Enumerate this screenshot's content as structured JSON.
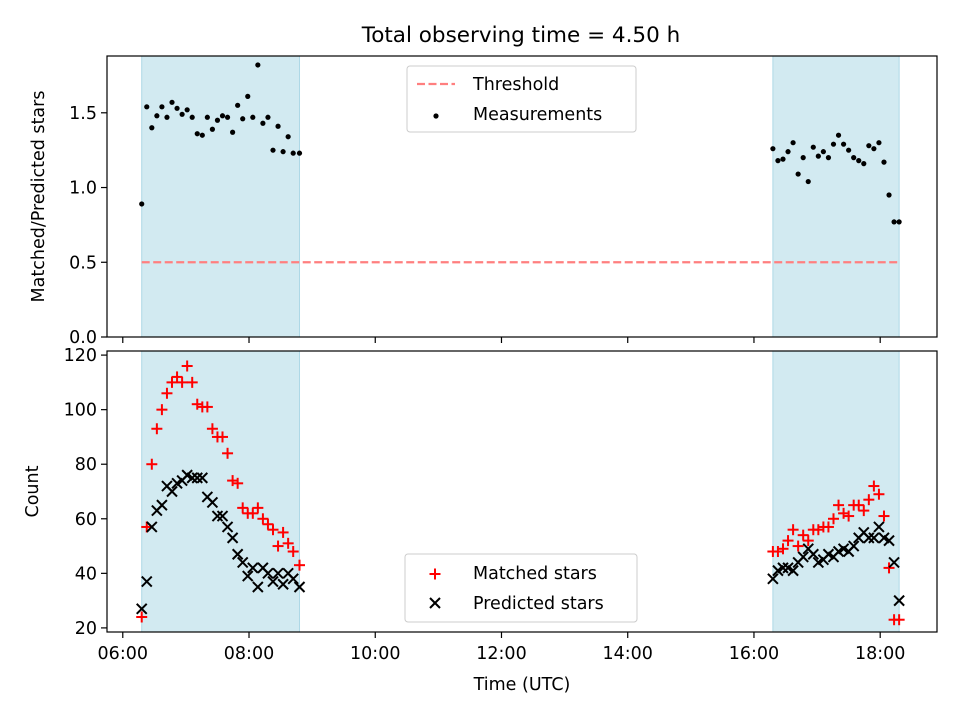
{
  "title": "Total observing time = 4.50 h",
  "colors": {
    "span": "#add8e6",
    "threshold": "#ff7f7f",
    "matched": "#ff0000",
    "predicted": "#000000",
    "measurement": "#000000"
  },
  "chart_data": [
    {
      "type": "scatter",
      "ylabel": "Matched/Predicted stars",
      "ylim": [
        0,
        1.88
      ],
      "yticks": [
        "0.0",
        "0.5",
        "1.0",
        "1.5"
      ],
      "ytick_values": [
        0,
        0.5,
        1.0,
        1.5
      ],
      "legend": {
        "placement": "top-center",
        "threshold_label": "Threshold",
        "measurements_label": "Measurements"
      },
      "threshold": 0.5,
      "observing_windows": [
        [
          6.3,
          8.8
        ],
        [
          16.3,
          18.3
        ]
      ],
      "series": [
        {
          "name": "Measurements",
          "x": [
            6.3,
            6.38,
            6.46,
            6.54,
            6.62,
            6.7,
            6.78,
            6.86,
            6.94,
            7.02,
            7.1,
            7.18,
            7.26,
            7.34,
            7.42,
            7.5,
            7.58,
            7.66,
            7.74,
            7.82,
            7.9,
            7.98,
            8.06,
            8.14,
            8.22,
            8.3,
            8.38,
            8.46,
            8.54,
            8.62,
            8.7,
            8.8,
            16.3,
            16.38,
            16.46,
            16.54,
            16.62,
            16.7,
            16.78,
            16.86,
            16.94,
            17.02,
            17.1,
            17.18,
            17.26,
            17.34,
            17.42,
            17.5,
            17.58,
            17.66,
            17.74,
            17.82,
            17.9,
            17.98,
            18.06,
            18.14,
            18.22,
            18.3
          ],
          "y": [
            0.89,
            1.54,
            1.4,
            1.48,
            1.54,
            1.47,
            1.57,
            1.53,
            1.49,
            1.52,
            1.47,
            1.36,
            1.35,
            1.47,
            1.39,
            1.45,
            1.48,
            1.47,
            1.37,
            1.55,
            1.46,
            1.61,
            1.47,
            1.82,
            1.43,
            1.47,
            1.25,
            1.41,
            1.24,
            1.34,
            1.23,
            1.23,
            1.26,
            1.18,
            1.19,
            1.24,
            1.3,
            1.09,
            1.2,
            1.04,
            1.27,
            1.21,
            1.24,
            1.2,
            1.29,
            1.35,
            1.29,
            1.25,
            1.2,
            1.18,
            1.16,
            1.28,
            1.26,
            1.3,
            1.17,
            0.95,
            0.77,
            0.77
          ]
        }
      ]
    },
    {
      "type": "scatter",
      "ylabel": "Count",
      "xlabel": "Time (UTC)",
      "ylim": [
        18.5,
        121.5
      ],
      "yticks": [
        "20",
        "40",
        "60",
        "80",
        "100",
        "120"
      ],
      "ytick_values": [
        20,
        40,
        60,
        80,
        100,
        120
      ],
      "xlim": [
        5.75,
        18.9
      ],
      "xticks": [
        "06:00",
        "08:00",
        "10:00",
        "12:00",
        "14:00",
        "16:00",
        "18:00"
      ],
      "xtick_values": [
        6,
        8,
        10,
        12,
        14,
        16,
        18
      ],
      "legend": {
        "placement": "bottom-center",
        "matched_label": "Matched stars",
        "predicted_label": "Predicted stars"
      },
      "observing_windows": [
        [
          6.3,
          8.8
        ],
        [
          16.3,
          18.3
        ]
      ],
      "series": [
        {
          "name": "Matched stars",
          "x": [
            6.3,
            6.38,
            6.46,
            6.54,
            6.62,
            6.7,
            6.78,
            6.86,
            6.94,
            7.02,
            7.1,
            7.18,
            7.26,
            7.34,
            7.42,
            7.5,
            7.58,
            7.66,
            7.74,
            7.82,
            7.9,
            7.98,
            8.06,
            8.14,
            8.22,
            8.3,
            8.38,
            8.46,
            8.54,
            8.62,
            8.7,
            8.8,
            16.3,
            16.38,
            16.46,
            16.54,
            16.62,
            16.7,
            16.78,
            16.86,
            16.94,
            17.02,
            17.1,
            17.18,
            17.26,
            17.34,
            17.42,
            17.5,
            17.58,
            17.66,
            17.74,
            17.82,
            17.9,
            17.98,
            18.06,
            18.14,
            18.22,
            18.3
          ],
          "y": [
            24,
            57,
            80,
            93,
            100,
            106,
            110,
            112,
            110,
            116,
            110,
            102,
            101,
            101,
            93,
            90,
            90,
            84,
            74,
            73,
            64,
            62,
            62,
            64,
            60,
            58,
            56,
            50,
            55,
            51,
            48,
            43,
            48,
            48,
            49,
            52,
            56,
            50,
            54,
            52,
            56,
            56,
            57,
            57,
            60,
            65,
            62,
            61,
            65,
            65,
            63,
            67,
            72,
            69,
            61,
            42,
            23,
            23
          ]
        },
        {
          "name": "Predicted stars",
          "x": [
            6.3,
            6.38,
            6.46,
            6.54,
            6.62,
            6.7,
            6.78,
            6.86,
            6.94,
            7.02,
            7.1,
            7.18,
            7.26,
            7.34,
            7.42,
            7.5,
            7.58,
            7.66,
            7.74,
            7.82,
            7.9,
            7.98,
            8.06,
            8.14,
            8.22,
            8.3,
            8.38,
            8.46,
            8.54,
            8.62,
            8.7,
            8.8,
            16.3,
            16.38,
            16.46,
            16.54,
            16.62,
            16.7,
            16.78,
            16.86,
            16.94,
            17.02,
            17.1,
            17.18,
            17.26,
            17.34,
            17.42,
            17.5,
            17.58,
            17.66,
            17.74,
            17.82,
            17.9,
            17.98,
            18.06,
            18.14,
            18.22,
            18.3
          ],
          "y": [
            27,
            37,
            57,
            63,
            65,
            72,
            70,
            73,
            74,
            76,
            75,
            75,
            75,
            68,
            66,
            61,
            61,
            57,
            53,
            47,
            44,
            39,
            42,
            35,
            42,
            40,
            37,
            40,
            36,
            40,
            38,
            35,
            38,
            41,
            42,
            42,
            41,
            44,
            46,
            49,
            47,
            44,
            45,
            47,
            46,
            48,
            49,
            48,
            50,
            53,
            55,
            53,
            53,
            57,
            53,
            52,
            44,
            30
          ]
        }
      ]
    }
  ]
}
